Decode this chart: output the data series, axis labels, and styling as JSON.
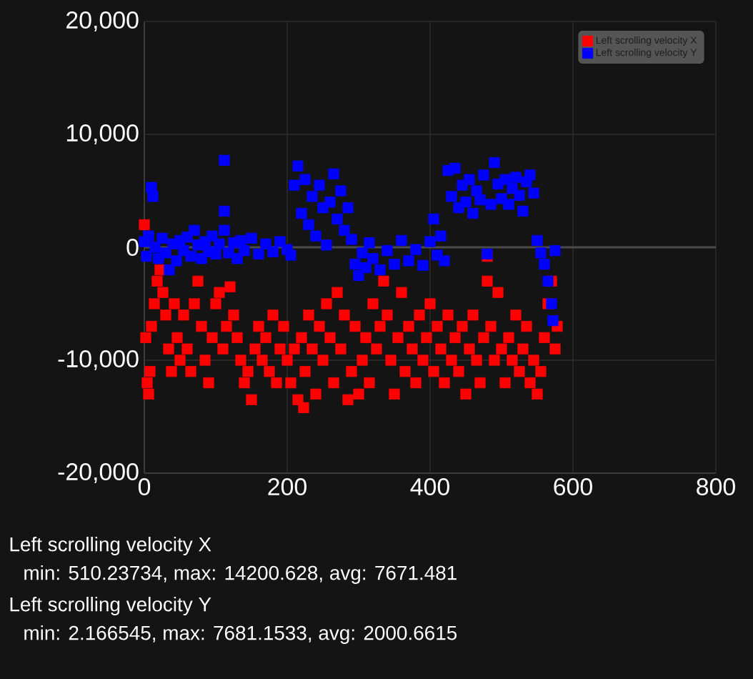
{
  "chart_data": {
    "type": "scatter",
    "xlim": [
      0,
      800
    ],
    "ylim": [
      -20000,
      20000
    ],
    "xticks": [
      0,
      200,
      400,
      600,
      800
    ],
    "yticks": [
      {
        "value": -20000,
        "label": "-20,000"
      },
      {
        "value": -10000,
        "label": "-10,000"
      },
      {
        "value": 0,
        "label": "0"
      },
      {
        "value": 10000,
        "label": "10,000"
      },
      {
        "value": 20000,
        "label": "20,000"
      }
    ],
    "grid": true,
    "legend": "top right",
    "marker": "square",
    "ref_lines": [
      {
        "axis": "y",
        "value": 0,
        "color": "#4a4a4a"
      }
    ],
    "series": [
      {
        "name": "Left scrolling velocity X",
        "color": "#ff0000",
        "x": [
          0,
          2,
          4,
          6,
          8,
          10,
          14,
          18,
          22,
          26,
          30,
          34,
          38,
          42,
          46,
          50,
          55,
          60,
          65,
          70,
          75,
          80,
          85,
          90,
          95,
          100,
          105,
          110,
          115,
          120,
          125,
          130,
          135,
          140,
          145,
          150,
          155,
          160,
          165,
          170,
          175,
          180,
          185,
          190,
          195,
          200,
          205,
          210,
          215,
          220,
          223,
          225,
          230,
          235,
          240,
          245,
          250,
          255,
          260,
          265,
          270,
          275,
          280,
          285,
          290,
          295,
          300,
          305,
          310,
          315,
          320,
          325,
          330,
          335,
          340,
          345,
          350,
          355,
          360,
          365,
          370,
          375,
          380,
          385,
          390,
          395,
          400,
          405,
          410,
          415,
          420,
          425,
          430,
          435,
          440,
          445,
          450,
          455,
          460,
          465,
          470,
          475,
          480,
          480,
          485,
          490,
          495,
          500,
          505,
          510,
          515,
          520,
          525,
          530,
          535,
          540,
          545,
          550,
          555,
          560,
          565,
          570,
          575,
          578
        ],
        "values": [
          2000,
          -8000,
          -12000,
          -13000,
          -11000,
          -7000,
          -5000,
          -3000,
          -2000,
          -4000,
          -6000,
          -9000,
          -11000,
          -5000,
          -8000,
          -10000,
          -6000,
          -9000,
          -11000,
          -5000,
          -3000,
          -7000,
          -10000,
          -12000,
          -8000,
          -5000,
          -4000,
          -9000,
          -7000,
          -3500,
          -6000,
          -8000,
          -10000,
          -12000,
          -11000,
          -13500,
          -9000,
          -7000,
          -10000,
          -8000,
          -11000,
          -6000,
          -12000,
          -9000,
          -7000,
          -10000,
          -12000,
          -9000,
          -13500,
          -8000,
          -14200,
          -11000,
          -6000,
          -9000,
          -13000,
          -7000,
          -10000,
          -5000,
          -8000,
          -12000,
          -4000,
          -9000,
          -6000,
          -13500,
          -11000,
          -7000,
          -13000,
          -10000,
          -8000,
          -12000,
          -5000,
          -9000,
          -7000,
          -3000,
          -6000,
          -10000,
          -13000,
          -8000,
          -4000,
          -11000,
          -7000,
          -9000,
          -12000,
          -6000,
          -10000,
          -8000,
          -5000,
          -11000,
          -7000,
          -9000,
          -12000,
          -6000,
          -10000,
          -8000,
          -11000,
          -7000,
          -13000,
          -9000,
          -6000,
          -10000,
          -12000,
          -8000,
          -800,
          -3000,
          -7000,
          -10000,
          -4000,
          -9000,
          -12000,
          -8000,
          -10000,
          -6000,
          -11000,
          -9000,
          -7000,
          -12000,
          -10000,
          -13000,
          -11000,
          -8000,
          -5000,
          -3000,
          -9000,
          -7000
        ]
      },
      {
        "name": "Left scrolling velocity Y",
        "color": "#0000ff",
        "x": [
          0,
          3,
          6,
          10,
          12,
          15,
          20,
          25,
          30,
          35,
          40,
          45,
          50,
          55,
          60,
          65,
          70,
          75,
          80,
          85,
          90,
          95,
          100,
          105,
          112,
          112,
          112,
          118,
          125,
          130,
          135,
          140,
          150,
          160,
          170,
          180,
          190,
          200,
          205,
          210,
          215,
          220,
          225,
          230,
          235,
          240,
          245,
          250,
          255,
          260,
          265,
          270,
          275,
          280,
          285,
          290,
          295,
          300,
          305,
          310,
          315,
          320,
          330,
          340,
          350,
          360,
          370,
          380,
          390,
          400,
          405,
          410,
          415,
          420,
          425,
          430,
          435,
          440,
          445,
          450,
          455,
          460,
          465,
          470,
          475,
          480,
          485,
          490,
          495,
          500,
          505,
          510,
          515,
          520,
          525,
          530,
          535,
          540,
          545,
          550,
          555,
          560,
          565,
          570,
          572,
          575
        ],
        "values": [
          500,
          -800,
          1000,
          5300,
          4500,
          0,
          -1000,
          800,
          -500,
          -2000,
          300,
          -1200,
          600,
          -300,
          900,
          -800,
          1500,
          200,
          -1000,
          500,
          -400,
          1000,
          -600,
          300,
          7700,
          3200,
          1500,
          -500,
          400,
          -1000,
          600,
          -300,
          800,
          -600,
          300,
          -400,
          500,
          -200,
          -700,
          5500,
          7200,
          3000,
          6000,
          2000,
          4500,
          1000,
          5500,
          3500,
          200,
          4000,
          6500,
          2500,
          5000,
          1500,
          3500,
          700,
          -1500,
          -2500,
          -500,
          -1800,
          400,
          -1000,
          -2000,
          -300,
          -1500,
          600,
          -1200,
          -200,
          -1600,
          500,
          2500,
          -700,
          1000,
          -1200,
          6800,
          4500,
          7000,
          3500,
          5500,
          4000,
          6000,
          3000,
          5000,
          4200,
          6400,
          -600,
          3800,
          7500,
          5600,
          4300,
          6000,
          3800,
          5200,
          6200,
          4600,
          3200,
          5800,
          6400,
          4800,
          600,
          -500,
          -1500,
          -3000,
          -5000,
          -6500,
          -300
        ]
      }
    ],
    "annotations": [
      "Left scrolling velocity X",
      "min: 510.23734, max: 14200.628, avg: 7671.481",
      "Left scrolling velocity Y",
      "min: 2.166545, max: 7681.1533, avg: 2000.6615"
    ]
  }
}
